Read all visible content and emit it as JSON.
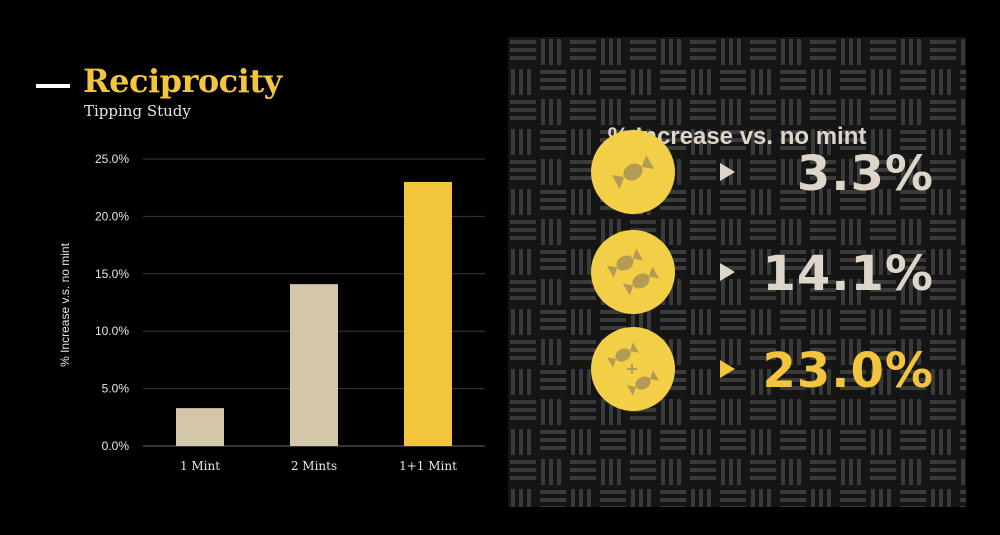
{
  "header": {
    "title": "Reciprocity",
    "subtitle": "Tipping Study"
  },
  "colors": {
    "accent": "#f2c53d",
    "bar_neutral": "#d4c6a8",
    "coin": "#f2cf47",
    "text_light": "#ddd6c8",
    "background": "#000000"
  },
  "chart_data": {
    "type": "bar",
    "categories": [
      "1 Mint",
      "2 Mints",
      "1+1 Mint"
    ],
    "values": [
      3.3,
      14.1,
      23.0
    ],
    "bar_colors": [
      "#d4c6a8",
      "#d4c6a8",
      "#f2c53d"
    ],
    "ylabel": "% Increase v.s. no mint",
    "ylim": [
      0,
      25
    ],
    "yticks": [
      "0.0%",
      "5.0%",
      "10.0%",
      "15.0%",
      "20.0%",
      "25.0%"
    ],
    "grid": true
  },
  "panel": {
    "heading": "% Increase vs. no mint",
    "rows": [
      {
        "icon": "one-candy-icon",
        "value": "3.3%"
      },
      {
        "icon": "two-candies-icon",
        "value": "14.1%"
      },
      {
        "icon": "candy-plus-candy-icon",
        "value": "23.0%"
      }
    ]
  }
}
